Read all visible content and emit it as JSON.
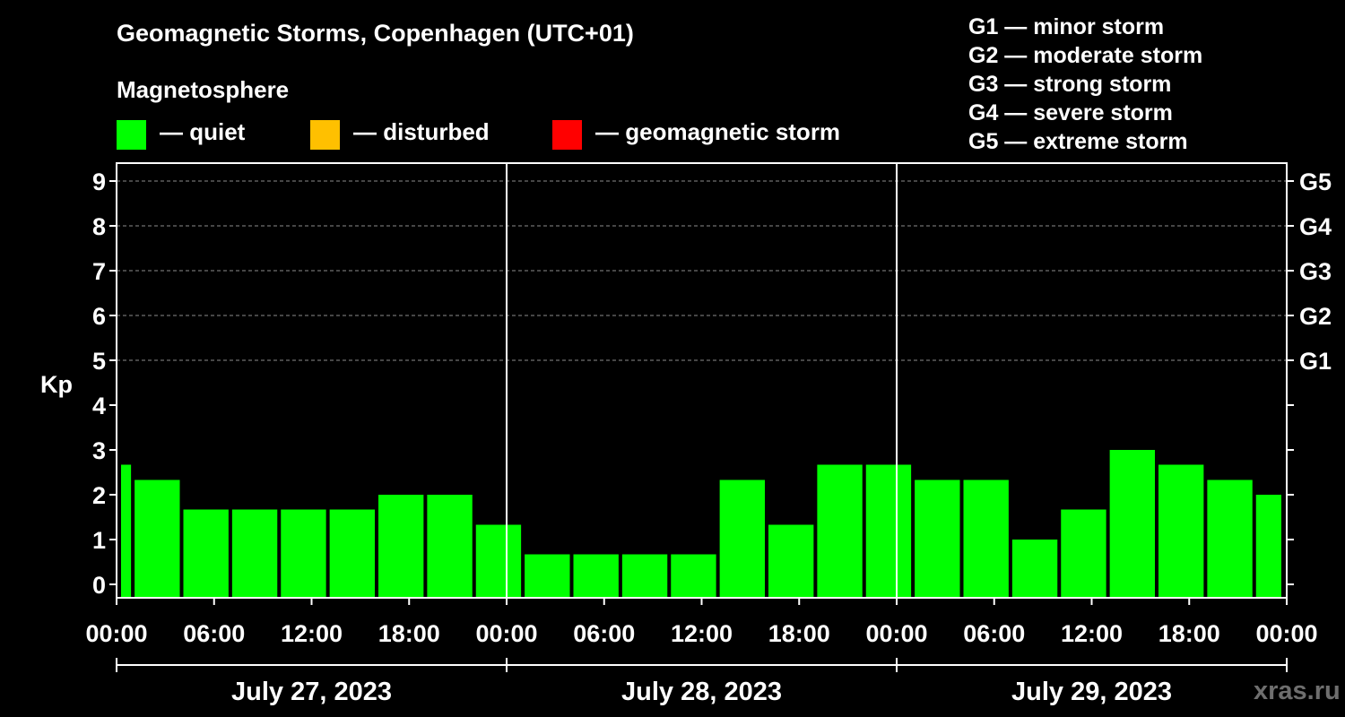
{
  "header": {
    "title": "Geomagnetic Storms, Copenhagen (UTC+01)",
    "subtitle": "Magnetosphere",
    "watermark": "xras.ru"
  },
  "legend": [
    {
      "label": "— quiet",
      "color": "#00ff00"
    },
    {
      "label": "— disturbed",
      "color": "#ffc000"
    },
    {
      "label": "— geomagnetic storm",
      "color": "#ff0000"
    }
  ],
  "g_scale": [
    "G1 — minor storm",
    "G2 — moderate storm",
    "G3 — strong storm",
    "G4 — severe storm",
    "G5 — extreme storm"
  ],
  "chart_data": {
    "type": "bar",
    "title": "Geomagnetic Storms, Copenhagen (UTC+01)",
    "ylabel": "Kp",
    "xlabel": "",
    "ylim": [
      -0.3,
      9.4
    ],
    "yticks": [
      0,
      1,
      2,
      3,
      4,
      5,
      6,
      7,
      8,
      9
    ],
    "grid_levels": [
      5,
      6,
      7,
      8,
      9
    ],
    "right_tick_labels": [
      {
        "value": 5,
        "label": "G1"
      },
      {
        "value": 6,
        "label": "G2"
      },
      {
        "value": 7,
        "label": "G3"
      },
      {
        "value": 8,
        "label": "G4"
      },
      {
        "value": 9,
        "label": "G5"
      }
    ],
    "x_unit": "hours from July 27, 2023 00:00",
    "xlim": [
      0,
      72
    ],
    "xtick_hours": [
      0,
      6,
      12,
      18,
      24,
      30,
      36,
      42,
      48,
      54,
      60,
      66,
      72
    ],
    "xtick_labels": [
      "00:00",
      "06:00",
      "12:00",
      "18:00",
      "00:00",
      "06:00",
      "12:00",
      "18:00",
      "00:00",
      "06:00",
      "12:00",
      "18:00",
      "00:00"
    ],
    "day_divider_hours": [
      24,
      48
    ],
    "days": [
      {
        "label": "July 27, 2023",
        "start_hour": 0,
        "end_hour": 24
      },
      {
        "label": "July 28, 2023",
        "start_hour": 24,
        "end_hour": 48
      },
      {
        "label": "July 29, 2023",
        "start_hour": 48,
        "end_hour": 72
      }
    ],
    "bar_color": "#00ff00",
    "bars": [
      {
        "start_hour": 0,
        "end_hour": 1,
        "kp": 2.67
      },
      {
        "start_hour": 1,
        "end_hour": 4,
        "kp": 2.33
      },
      {
        "start_hour": 4,
        "end_hour": 7,
        "kp": 1.67
      },
      {
        "start_hour": 7,
        "end_hour": 10,
        "kp": 1.67
      },
      {
        "start_hour": 10,
        "end_hour": 13,
        "kp": 1.67
      },
      {
        "start_hour": 13,
        "end_hour": 16,
        "kp": 1.67
      },
      {
        "start_hour": 16,
        "end_hour": 19,
        "kp": 2.0
      },
      {
        "start_hour": 19,
        "end_hour": 22,
        "kp": 2.0
      },
      {
        "start_hour": 22,
        "end_hour": 25,
        "kp": 1.33
      },
      {
        "start_hour": 25,
        "end_hour": 28,
        "kp": 0.67
      },
      {
        "start_hour": 28,
        "end_hour": 31,
        "kp": 0.67
      },
      {
        "start_hour": 31,
        "end_hour": 34,
        "kp": 0.67
      },
      {
        "start_hour": 34,
        "end_hour": 37,
        "kp": 0.67
      },
      {
        "start_hour": 37,
        "end_hour": 40,
        "kp": 2.33
      },
      {
        "start_hour": 40,
        "end_hour": 43,
        "kp": 1.33
      },
      {
        "start_hour": 43,
        "end_hour": 46,
        "kp": 2.67
      },
      {
        "start_hour": 46,
        "end_hour": 49,
        "kp": 2.67
      },
      {
        "start_hour": 49,
        "end_hour": 52,
        "kp": 2.33
      },
      {
        "start_hour": 52,
        "end_hour": 55,
        "kp": 2.33
      },
      {
        "start_hour": 55,
        "end_hour": 58,
        "kp": 1.0
      },
      {
        "start_hour": 58,
        "end_hour": 61,
        "kp": 1.67
      },
      {
        "start_hour": 61,
        "end_hour": 64,
        "kp": 3.0
      },
      {
        "start_hour": 64,
        "end_hour": 67,
        "kp": 2.67
      },
      {
        "start_hour": 67,
        "end_hour": 70,
        "kp": 2.33
      },
      {
        "start_hour": 70,
        "end_hour": 72,
        "kp": 2.0
      }
    ]
  }
}
